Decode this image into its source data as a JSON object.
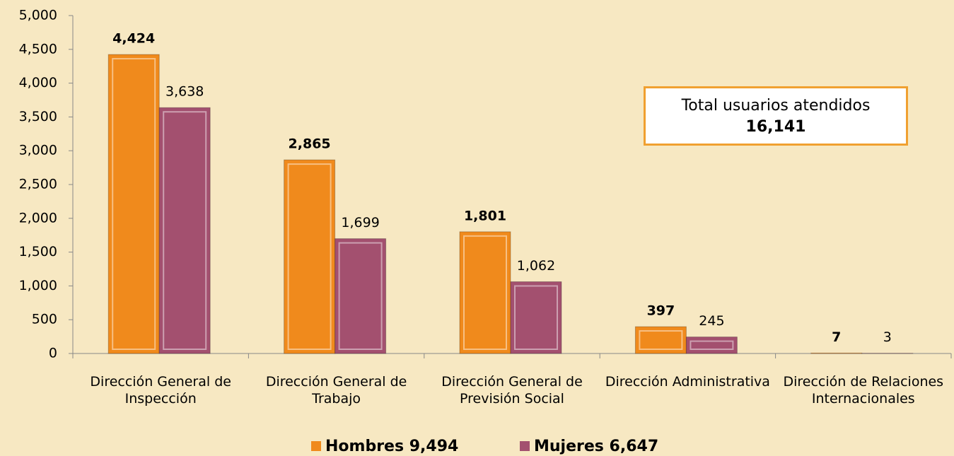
{
  "chart_data": {
    "type": "bar",
    "categories": [
      "Dirección General de Inspección",
      "Dirección General de Trabajo",
      "Dirección General de Previsión Social",
      "Dirección Administrativa",
      "Dirección de Relaciones Internacionales"
    ],
    "series": [
      {
        "name": "Hombres 9,494",
        "color": "#f08a1c",
        "values": [
          4424,
          2865,
          1801,
          397,
          7
        ],
        "value_labels": [
          "4,424",
          "2,865",
          "1,801",
          "397",
          "7"
        ]
      },
      {
        "name": "Mujeres 6,647",
        "color": "#a3506f",
        "values": [
          3638,
          1699,
          1062,
          245,
          3
        ],
        "value_labels": [
          "3,638",
          "1,699",
          "1,062",
          "245",
          "3"
        ]
      }
    ],
    "ylim": [
      0,
      5000
    ],
    "yticks": [
      0,
      500,
      {
        "value": 1000,
        "label": "1,000"
      },
      {
        "value": 1500,
        "label": "1,500"
      },
      {
        "value": 2000,
        "label": "2,000"
      },
      {
        "value": 2500,
        "label": "2,500"
      },
      {
        "value": 3000,
        "label": "3,000"
      },
      {
        "value": 3500,
        "label": "3,500"
      },
      {
        "value": 4000,
        "label": "4,000"
      },
      {
        "value": 4500,
        "label": "4,500"
      },
      {
        "value": 5000,
        "label": "5,000"
      }
    ],
    "annotations": [
      "Total usuarios atendidos",
      "16,141"
    ]
  }
}
